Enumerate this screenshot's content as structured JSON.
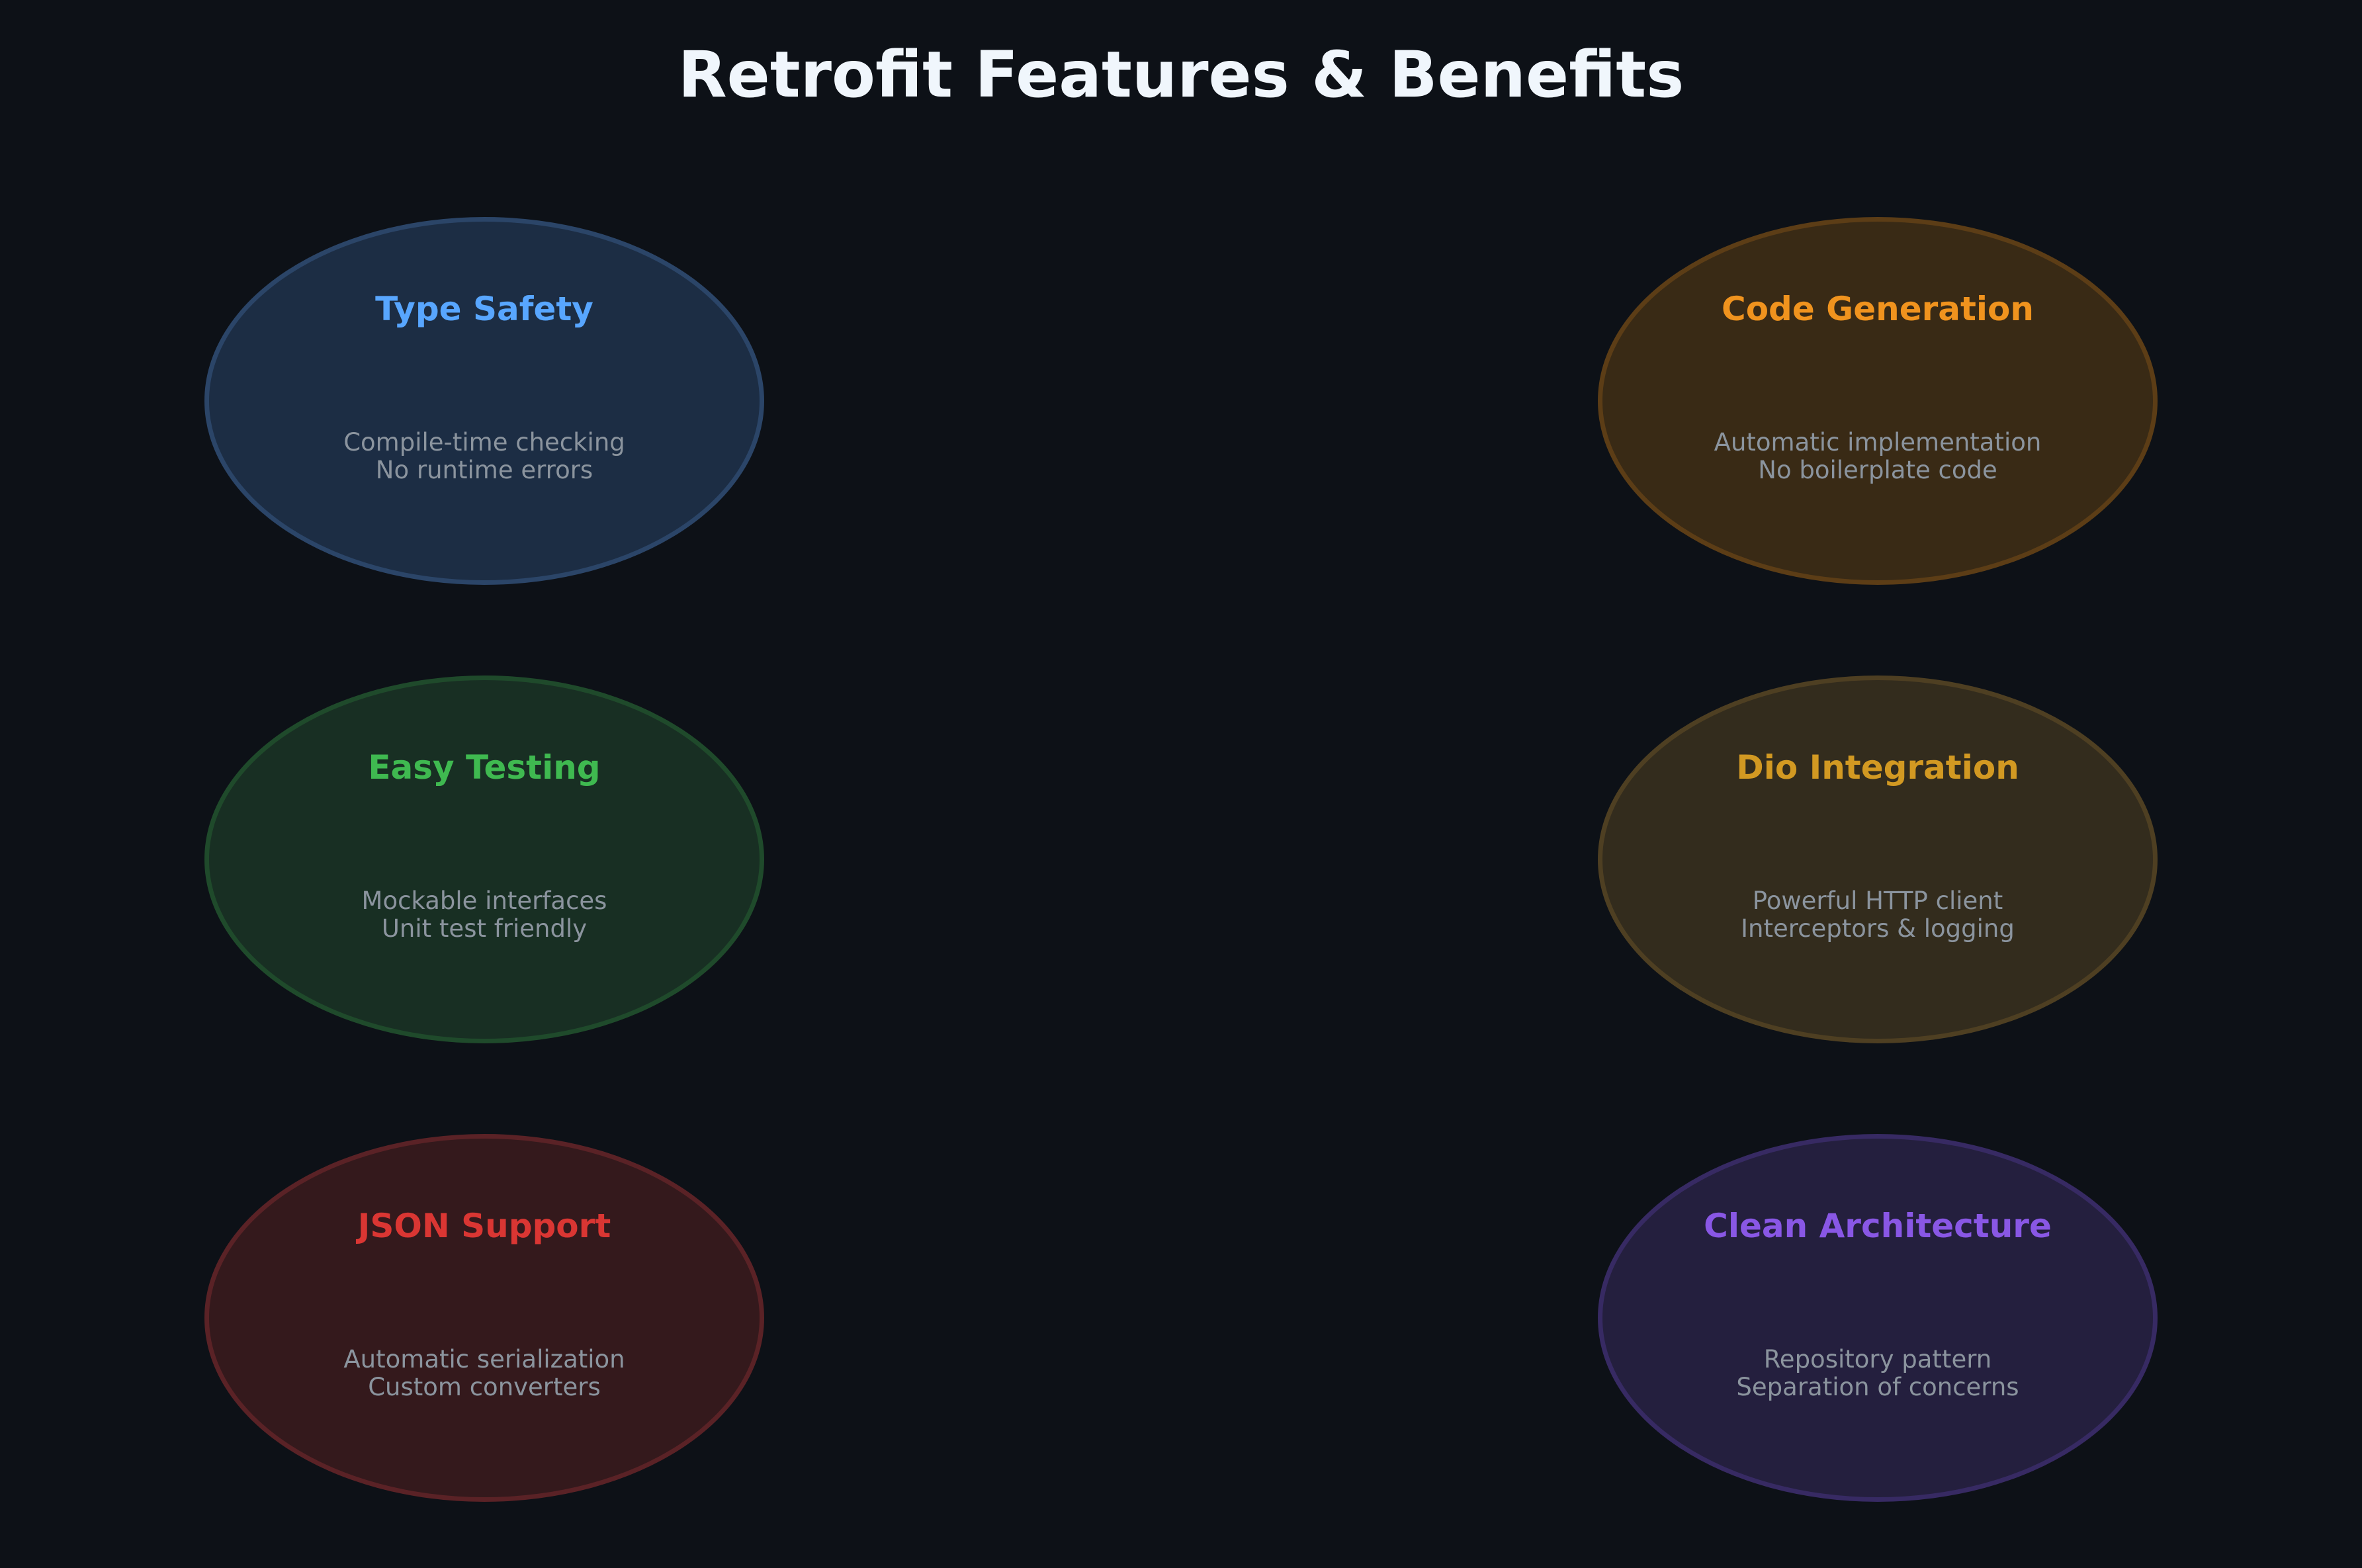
{
  "title": "Retrofit Features & Benefits",
  "cards": [
    {
      "title": "Type Safety",
      "lines": [
        "Compile-time checking",
        "No runtime errors"
      ],
      "color": "#58a6ff",
      "fill": "#1c2d44",
      "border": "#2b4568"
    },
    {
      "title": "Code Generation",
      "lines": [
        "Automatic implementation",
        "No boilerplate code"
      ],
      "color": "#f0931e",
      "fill": "#392a15",
      "border": "#5c3d16"
    },
    {
      "title": "Easy Testing",
      "lines": [
        "Mockable interfaces",
        "Unit test friendly"
      ],
      "color": "#3fb950",
      "fill": "#182f23",
      "border": "#1f4a2b"
    },
    {
      "title": "Dio Integration",
      "lines": [
        "Powerful HTTP client",
        "Interceptors & logging"
      ],
      "color": "#d29922",
      "fill": "#332c1d",
      "border": "#4e3f22"
    },
    {
      "title": "JSON Support",
      "lines": [
        "Automatic serialization",
        "Custom converters"
      ],
      "color": "#da3633",
      "fill": "#34191c",
      "border": "#5a2226"
    },
    {
      "title": "Clean Architecture",
      "lines": [
        "Repository pattern",
        "Separation of concerns"
      ],
      "color": "#8957e5",
      "fill": "#241f3e",
      "border": "#372a63"
    }
  ]
}
